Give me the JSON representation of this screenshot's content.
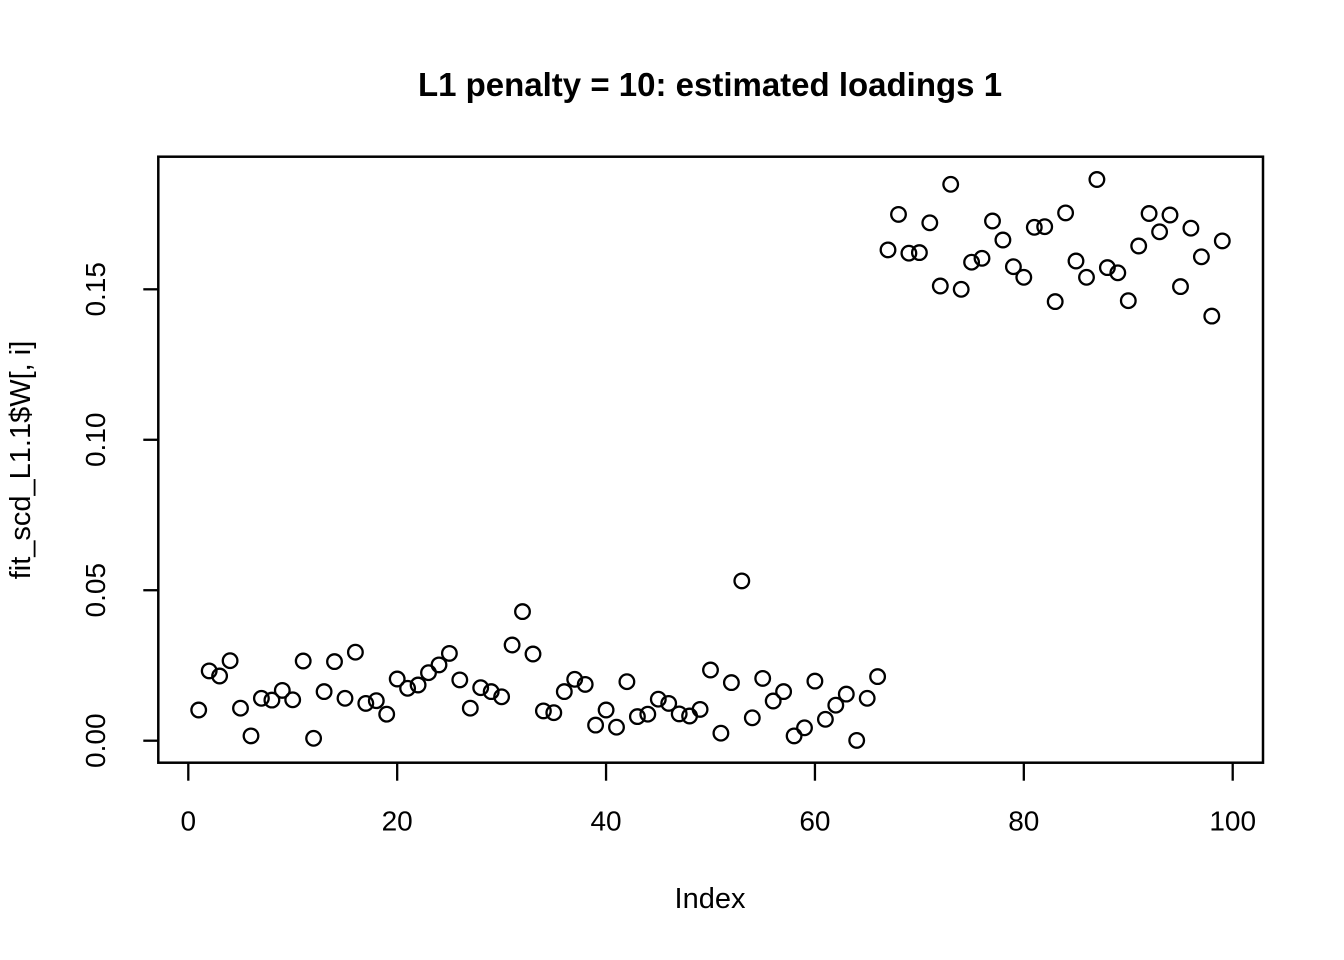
{
  "page": {
    "background": "#ffffff",
    "foreground": "#000000"
  },
  "chart_data": {
    "type": "scatter",
    "title": "L1 penalty = 10: estimated loadings 1",
    "xlabel": "Index",
    "ylabel": "fit_scd_L1.1$W[, i]",
    "marker": "open-circle",
    "marker_color": "#000000",
    "grid": false,
    "legend_position": "none",
    "x_ticks": [
      {
        "label": "0",
        "value": 0
      },
      {
        "label": "20",
        "value": 20
      },
      {
        "label": "40",
        "value": 40
      },
      {
        "label": "60",
        "value": 60
      },
      {
        "label": "80",
        "value": 80
      },
      {
        "label": "100",
        "value": 100
      }
    ],
    "y_ticks": [
      {
        "label": "0.00",
        "value": 0.0
      },
      {
        "label": "0.05",
        "value": 0.05
      },
      {
        "label": "0.10",
        "value": 0.1
      },
      {
        "label": "0.15",
        "value": 0.15
      }
    ],
    "xlim": [
      -2.9,
      102.9
    ],
    "ylim": [
      -0.0073,
      0.194
    ],
    "points": [
      [
        1,
        0.0102
      ],
      [
        2,
        0.0232
      ],
      [
        3,
        0.0215
      ],
      [
        4,
        0.0266
      ],
      [
        5,
        0.0108
      ],
      [
        6,
        0.0016
      ],
      [
        7,
        0.0141
      ],
      [
        8,
        0.0135
      ],
      [
        9,
        0.0167
      ],
      [
        10,
        0.0136
      ],
      [
        11,
        0.0265
      ],
      [
        12,
        0.0008
      ],
      [
        13,
        0.0163
      ],
      [
        14,
        0.0263
      ],
      [
        15,
        0.0141
      ],
      [
        16,
        0.0294
      ],
      [
        17,
        0.0124
      ],
      [
        18,
        0.0133
      ],
      [
        19,
        0.0088
      ],
      [
        20,
        0.0205
      ],
      [
        21,
        0.0174
      ],
      [
        22,
        0.0185
      ],
      [
        23,
        0.0226
      ],
      [
        24,
        0.0252
      ],
      [
        25,
        0.029
      ],
      [
        26,
        0.0202
      ],
      [
        27,
        0.0108
      ],
      [
        28,
        0.0176
      ],
      [
        29,
        0.0163
      ],
      [
        30,
        0.0146
      ],
      [
        31,
        0.0318
      ],
      [
        32,
        0.0429
      ],
      [
        33,
        0.0288
      ],
      [
        34,
        0.0099
      ],
      [
        35,
        0.0093
      ],
      [
        36,
        0.0163
      ],
      [
        37,
        0.0204
      ],
      [
        38,
        0.0187
      ],
      [
        39,
        0.0052
      ],
      [
        40,
        0.0102
      ],
      [
        41,
        0.0045
      ],
      [
        42,
        0.0196
      ],
      [
        43,
        0.008
      ],
      [
        44,
        0.0088
      ],
      [
        45,
        0.0138
      ],
      [
        46,
        0.0124
      ],
      [
        47,
        0.0089
      ],
      [
        48,
        0.0082
      ],
      [
        49,
        0.0104
      ],
      [
        50,
        0.0235
      ],
      [
        51,
        0.0025
      ],
      [
        52,
        0.0193
      ],
      [
        53,
        0.0531
      ],
      [
        54,
        0.0076
      ],
      [
        55,
        0.0207
      ],
      [
        56,
        0.0132
      ],
      [
        57,
        0.0163
      ],
      [
        58,
        0.0016
      ],
      [
        59,
        0.0043
      ],
      [
        60,
        0.0198
      ],
      [
        61,
        0.0071
      ],
      [
        62,
        0.0118
      ],
      [
        63,
        0.0155
      ],
      [
        64,
        0.0001
      ],
      [
        65,
        0.0141
      ],
      [
        66,
        0.0213
      ],
      [
        67,
        0.1631
      ],
      [
        68,
        0.1749
      ],
      [
        69,
        0.162
      ],
      [
        70,
        0.1622
      ],
      [
        71,
        0.1721
      ],
      [
        72,
        0.1511
      ],
      [
        73,
        0.1849
      ],
      [
        74,
        0.15
      ],
      [
        75,
        0.159
      ],
      [
        76,
        0.1603
      ],
      [
        77,
        0.1727
      ],
      [
        78,
        0.1664
      ],
      [
        79,
        0.1575
      ],
      [
        80,
        0.154
      ],
      [
        81,
        0.1706
      ],
      [
        82,
        0.1708
      ],
      [
        83,
        0.1459
      ],
      [
        84,
        0.1754
      ],
      [
        85,
        0.1594
      ],
      [
        86,
        0.154
      ],
      [
        87,
        0.1865
      ],
      [
        88,
        0.1572
      ],
      [
        89,
        0.1555
      ],
      [
        90,
        0.1462
      ],
      [
        91,
        0.1644
      ],
      [
        92,
        0.1752
      ],
      [
        93,
        0.1691
      ],
      [
        94,
        0.1747
      ],
      [
        95,
        0.1509
      ],
      [
        96,
        0.1703
      ],
      [
        97,
        0.1608
      ],
      [
        98,
        0.1411
      ],
      [
        99,
        0.1661
      ]
    ]
  }
}
